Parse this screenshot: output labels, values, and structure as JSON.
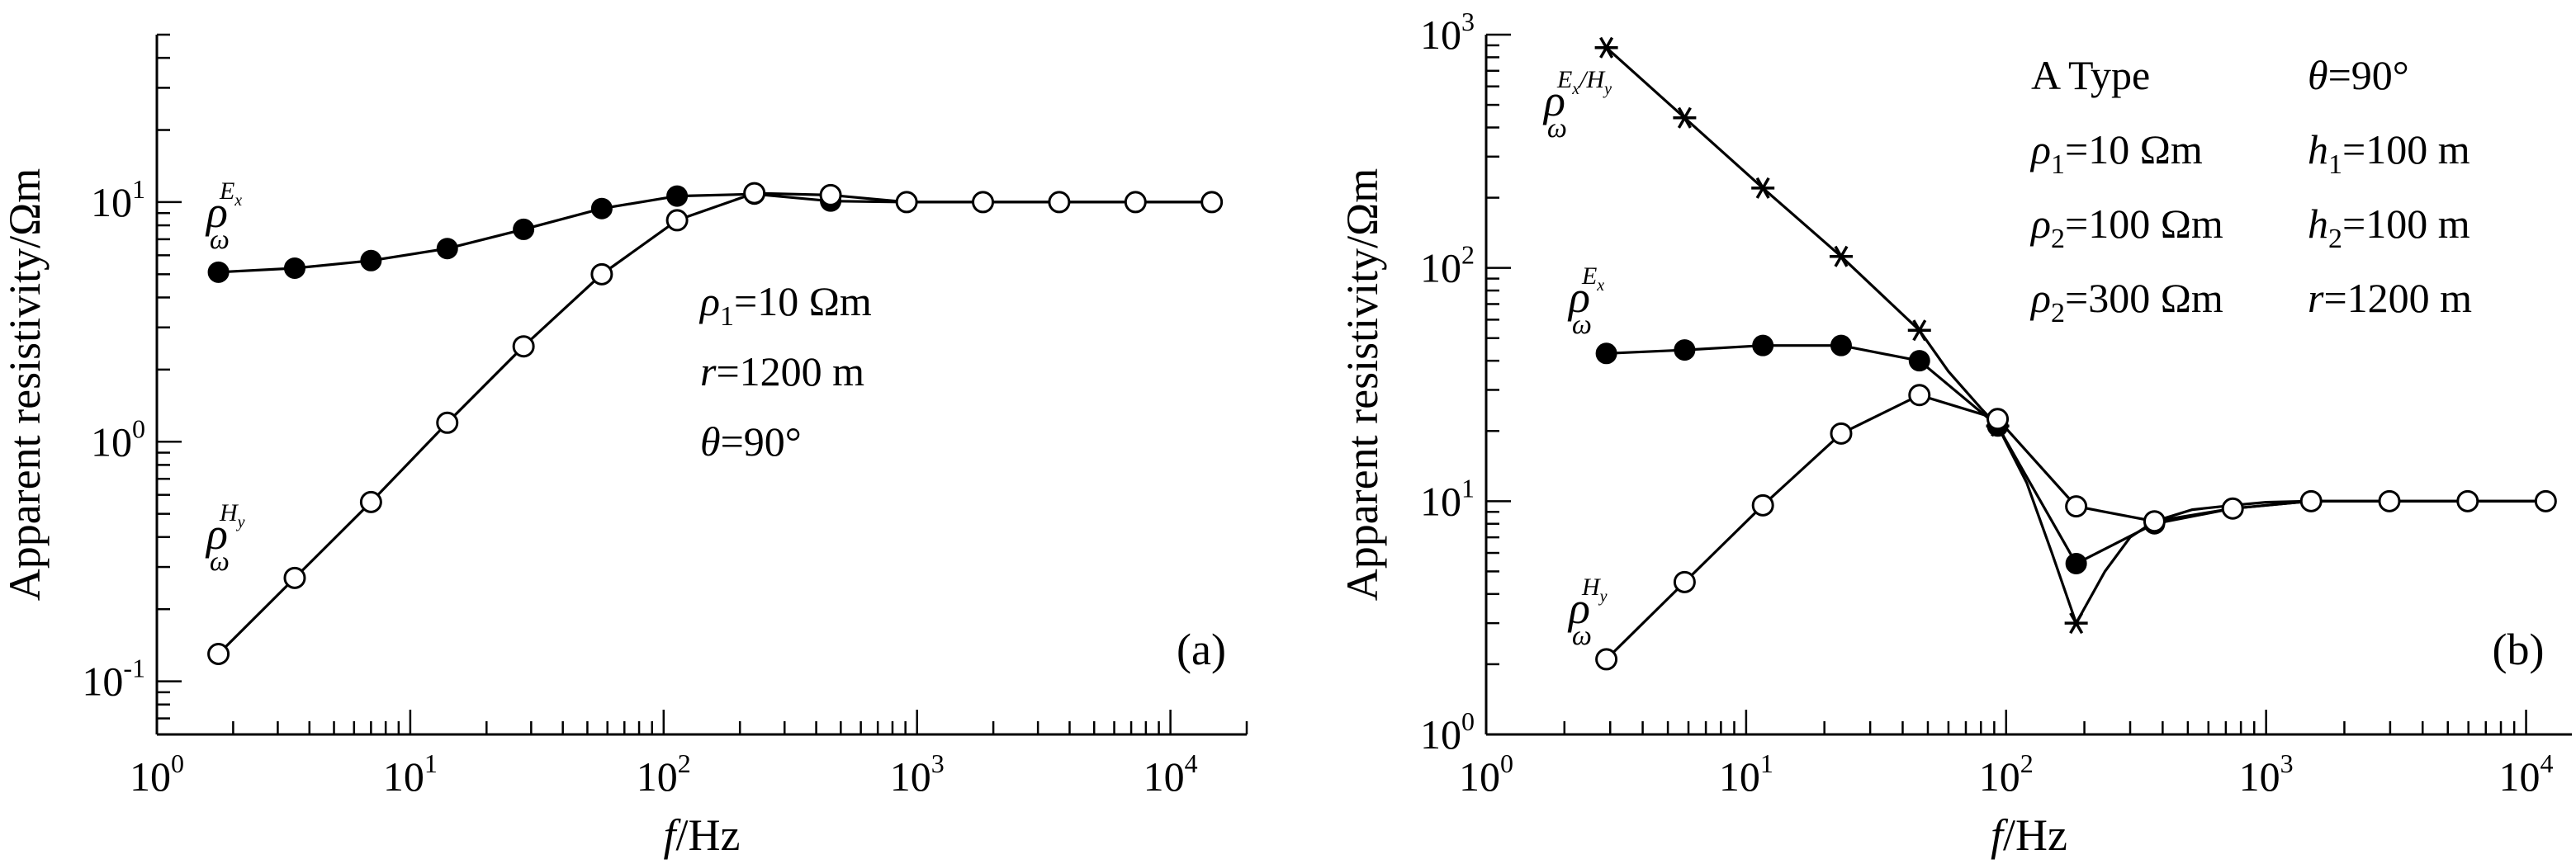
{
  "colors": {
    "ink": "#000000",
    "paper": "#ffffff"
  },
  "chart_data": [
    {
      "id": "a",
      "type": "line",
      "scale": {
        "x": "log",
        "y": "log"
      },
      "xlim": [
        1,
        20000
      ],
      "ylim": [
        0.06,
        50
      ],
      "x_ticks": [
        {
          "value": 1,
          "base": "10",
          "exp": "0"
        },
        {
          "value": 10,
          "base": "10",
          "exp": "1"
        },
        {
          "value": 100,
          "base": "10",
          "exp": "2"
        },
        {
          "value": 1000,
          "base": "10",
          "exp": "3"
        },
        {
          "value": 10000,
          "base": "10",
          "exp": "4"
        }
      ],
      "y_ticks": [
        {
          "value": 0.1,
          "base": "10",
          "exp": "-1"
        },
        {
          "value": 1,
          "base": "10",
          "exp": "0"
        },
        {
          "value": 10,
          "base": "10",
          "exp": "1"
        }
      ],
      "xlabel": {
        "italic": "f",
        "rest": "/Hz"
      },
      "ylabel": "Apparent resistivity/Ωm",
      "panel_label": "(a)",
      "series": [
        {
          "name": "ρ_ω^{E_x}",
          "label": {
            "main": "ρ",
            "sub": "ω",
            "sup": "E",
            "supsub": "x"
          },
          "marker": "filled-circle",
          "x": [
            1.75,
            3.5,
            7,
            14,
            28,
            57,
            113,
            228,
            456,
            910,
            1820,
            3640,
            7280,
            14560
          ],
          "y": [
            5.1,
            5.3,
            5.7,
            6.4,
            7.7,
            9.4,
            10.6,
            10.8,
            10.1,
            10.0,
            10.0,
            10.0,
            10.0,
            10.0
          ]
        },
        {
          "name": "ρ_ω^{H_y}",
          "label": {
            "main": "ρ",
            "sub": "ω",
            "sup": "H",
            "supsub": "y"
          },
          "marker": "open-circle",
          "x": [
            1.75,
            3.5,
            7,
            14,
            28,
            57,
            113,
            228,
            456,
            910,
            1820,
            3640,
            7280,
            14560
          ],
          "y": [
            0.13,
            0.27,
            0.56,
            1.2,
            2.5,
            5.0,
            8.4,
            10.9,
            10.7,
            10.0,
            10.0,
            10.0,
            10.0,
            10.0
          ]
        }
      ],
      "annotations": [
        {
          "main": "ρ",
          "sub": "1",
          "rest": "=10 Ωm"
        },
        {
          "main": "r",
          "sub": "",
          "rest": "=1200 m"
        },
        {
          "main": "θ",
          "sub": "",
          "rest": "=90°"
        }
      ]
    },
    {
      "id": "b",
      "type": "line",
      "scale": {
        "x": "log",
        "y": "log"
      },
      "xlim": [
        1,
        15000
      ],
      "ylim": [
        1,
        1000
      ],
      "x_ticks": [
        {
          "value": 1,
          "base": "10",
          "exp": "0"
        },
        {
          "value": 10,
          "base": "10",
          "exp": "1"
        },
        {
          "value": 100,
          "base": "10",
          "exp": "2"
        },
        {
          "value": 1000,
          "base": "10",
          "exp": "3"
        },
        {
          "value": 10000,
          "base": "10",
          "exp": "4"
        }
      ],
      "y_ticks": [
        {
          "value": 1,
          "base": "10",
          "exp": "0"
        },
        {
          "value": 10,
          "base": "10",
          "exp": "1"
        },
        {
          "value": 100,
          "base": "10",
          "exp": "2"
        },
        {
          "value": 1000,
          "base": "10",
          "exp": "3"
        }
      ],
      "xlabel": {
        "italic": "f",
        "rest": "/Hz"
      },
      "ylabel": "Apparent resistivity/Ωm",
      "panel_label": "(b)",
      "series": [
        {
          "name": "ρ_ω^{E_x/H_y}",
          "label": {
            "main": "ρ",
            "sub": "ω",
            "sup": "E",
            "supsub": "x",
            "sup2": "/H",
            "supsub2": "y"
          },
          "marker": "asterisk",
          "x": [
            2.9,
            5.8,
            11.6,
            23.2,
            46.4,
            92.8,
            186
          ],
          "y": [
            880,
            440,
            220,
            112,
            54,
            21,
            3.0
          ],
          "line_x": [
            2.9,
            5.8,
            11.6,
            23.2,
            46.4,
            60,
            80,
            92.8,
            120,
            150,
            186,
            240,
            300,
            372,
            520,
            744,
            1000,
            1490,
            2980,
            5960,
            11900
          ],
          "line_y": [
            880,
            440,
            220,
            112,
            54,
            36,
            25,
            21,
            12,
            6,
            3.0,
            5,
            7,
            8.2,
            9.2,
            9.6,
            9.9,
            10,
            10,
            10,
            10
          ]
        },
        {
          "name": "ρ_ω^{E_x}",
          "label": {
            "main": "ρ",
            "sub": "ω",
            "sup": "E",
            "supsub": "x"
          },
          "marker": "filled-circle",
          "x": [
            2.9,
            5.8,
            11.6,
            23.2,
            46.4,
            92.8,
            186,
            372,
            744,
            1490,
            2980,
            5960,
            11900
          ],
          "y": [
            43,
            44.5,
            46.5,
            46.5,
            40,
            21,
            5.4,
            8.0,
            9.3,
            10,
            10,
            10,
            10
          ]
        },
        {
          "name": "ρ_ω^{H_y}",
          "label": {
            "main": "ρ",
            "sub": "ω",
            "sup": "H",
            "supsub": "y"
          },
          "marker": "open-circle",
          "x": [
            2.9,
            5.8,
            11.6,
            23.2,
            46.4,
            92.8,
            186,
            372,
            744,
            1490,
            2980,
            5960,
            11900
          ],
          "y": [
            2.1,
            4.5,
            9.6,
            19.5,
            28.5,
            22.5,
            9.5,
            8.2,
            9.3,
            10,
            10,
            10,
            10
          ]
        }
      ],
      "legend_rows": [
        [
          {
            "text": "A  Type"
          },
          {
            "main": "θ",
            "sub": "",
            "rest": "=90°"
          }
        ],
        [
          {
            "main": "ρ",
            "sub": "1",
            "rest": "=10 Ωm"
          },
          {
            "main": "h",
            "sub": "1",
            "rest": "=100 m"
          }
        ],
        [
          {
            "main": "ρ",
            "sub": "2",
            "rest": "=100 Ωm"
          },
          {
            "main": "h",
            "sub": "2",
            "rest": "=100 m"
          }
        ],
        [
          {
            "main": "ρ",
            "sub": "2",
            "rest": "=300 Ωm"
          },
          {
            "main": "r",
            "sub": "",
            "rest": "=1200 m"
          }
        ]
      ]
    }
  ]
}
